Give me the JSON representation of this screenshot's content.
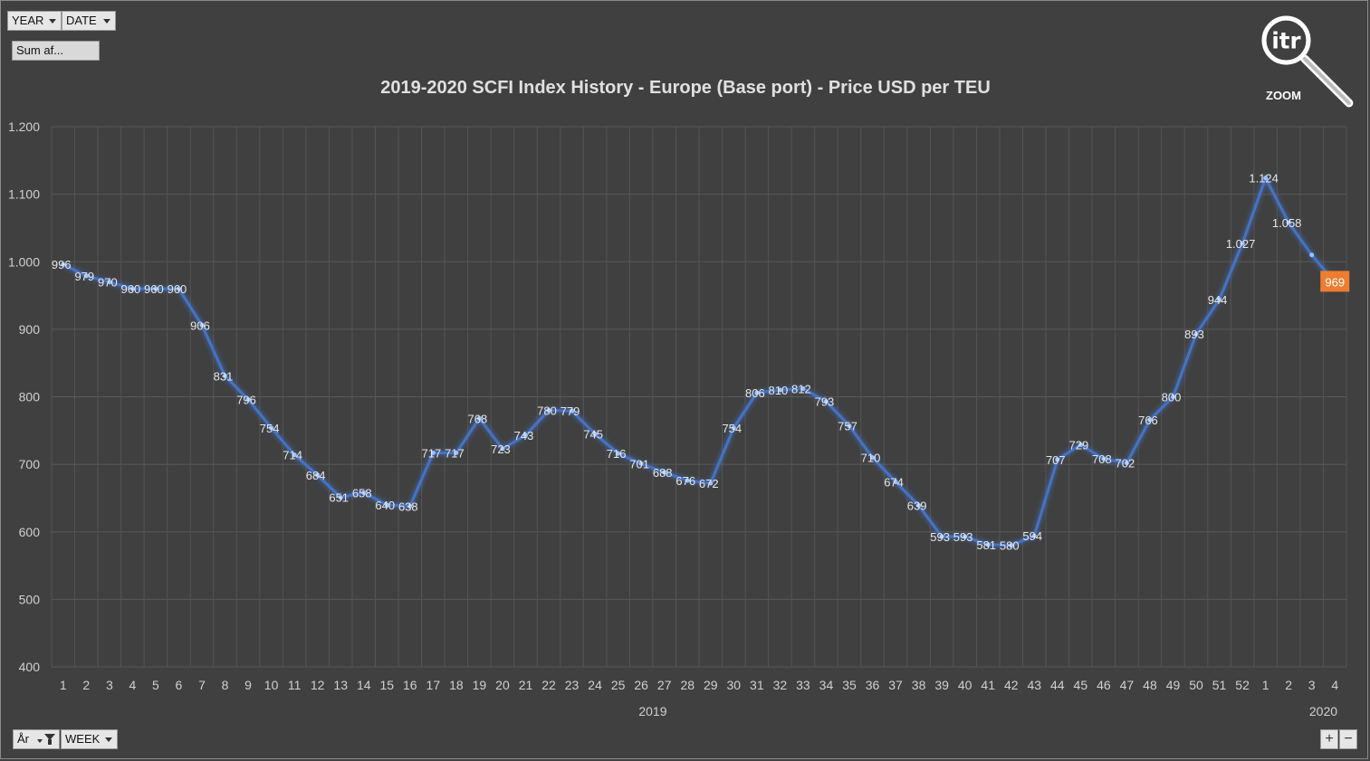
{
  "controls": {
    "year_label": "YEAR",
    "date_label": "DATE",
    "sum_label": "Sum af...",
    "ar_label": "År",
    "week_label": "WEEK",
    "plus_label": "+",
    "minus_label": "−"
  },
  "logo": {
    "text": "itr",
    "zoom_label": "ZOOM"
  },
  "colors": {
    "background": "#404040",
    "line": "#4472C4",
    "highlight": "#ED7D31",
    "grid": "#595959"
  },
  "chart_data": {
    "type": "line",
    "title": "2019-2020 SCFI Index History - Europe (Base port) - Price USD per TEU",
    "ylim": [
      400,
      1200
    ],
    "yticks": [
      "400",
      "500",
      "600",
      "700",
      "800",
      "900",
      "1.000",
      "1.100",
      "1.200"
    ],
    "grid": true,
    "groups": [
      {
        "label": "2019",
        "weeks": [
          "1",
          "2",
          "3",
          "4",
          "5",
          "6",
          "7",
          "8",
          "9",
          "10",
          "11",
          "12",
          "13",
          "14",
          "15",
          "16",
          "17",
          "18",
          "19",
          "20",
          "21",
          "22",
          "23",
          "24",
          "25",
          "26",
          "27",
          "28",
          "29",
          "30",
          "31",
          "32",
          "33",
          "34",
          "35",
          "36",
          "37",
          "38",
          "39",
          "40",
          "41",
          "42",
          "43",
          "44",
          "45",
          "46",
          "47",
          "48",
          "49",
          "50",
          "51",
          "52"
        ]
      },
      {
        "label": "2020",
        "weeks": [
          "1",
          "2",
          "3",
          "4"
        ]
      }
    ],
    "series": [
      {
        "values": [
          996,
          979,
          970,
          960,
          960,
          960,
          906,
          831,
          796,
          754,
          714,
          684,
          651,
          658,
          640,
          638,
          717,
          717,
          768,
          723,
          743,
          780,
          779,
          745,
          716,
          701,
          688,
          676,
          672,
          754,
          806,
          810,
          812,
          793,
          757,
          710,
          674,
          639,
          593,
          593,
          581,
          580,
          594,
          707,
          729,
          708,
          702,
          766,
          800,
          893,
          944,
          1027,
          1124,
          1058,
          1010,
          969
        ],
        "labels": [
          "996",
          "979",
          "970",
          "960",
          "960",
          "960",
          "906",
          "831",
          "796",
          "754",
          "714",
          "684",
          "651",
          "658",
          "640",
          "638",
          "717",
          "717",
          "768",
          "723",
          "743",
          "780",
          "779",
          "745",
          "716",
          "701",
          "688",
          "676",
          "672",
          "754",
          "806",
          "810",
          "812",
          "793",
          "757",
          "710",
          "674",
          "639",
          "593",
          "593",
          "581",
          "580",
          "594",
          "707",
          "729",
          "708",
          "702",
          "766",
          "800",
          "893",
          "944",
          "1.027",
          "1.124",
          "1.058",
          "",
          "969"
        ]
      }
    ],
    "highlight_index": 55
  }
}
